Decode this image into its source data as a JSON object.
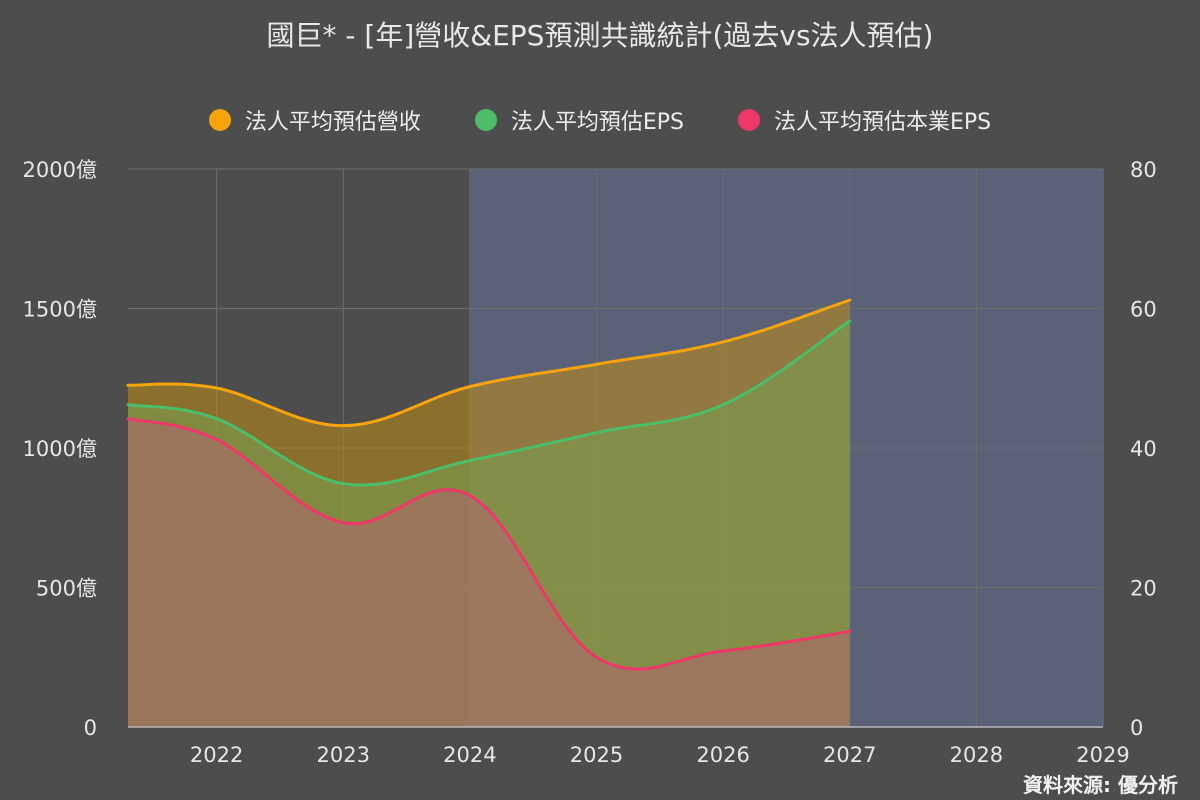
{
  "chart_data": {
    "type": "area",
    "title": "國巨* - [年]營收&EPS預測共識統計(過去vs法人預估)",
    "x_ticks": [
      "2022",
      "2023",
      "2024",
      "2025",
      "2026",
      "2027",
      "2028",
      "2029"
    ],
    "forecast_start": "2024",
    "y_left": {
      "ticks": [
        "0",
        "500億",
        "1000億",
        "1500億",
        "2000億"
      ],
      "range": [
        0,
        2000
      ],
      "unit": "億"
    },
    "y_right": {
      "ticks": [
        "0",
        "20",
        "40",
        "60",
        "80"
      ],
      "range": [
        0,
        80
      ]
    },
    "x_range": [
      2021.3,
      2029
    ],
    "series": [
      {
        "name": "法人平均預估營收",
        "axis": "left",
        "color": "#f5a40b",
        "fill": "rgba(190,140,20,0.55)",
        "points": [
          [
            2021.3,
            1225
          ],
          [
            2022,
            1215
          ],
          [
            2023,
            1080
          ],
          [
            2024,
            1220
          ],
          [
            2025,
            1300
          ],
          [
            2026,
            1380
          ],
          [
            2027,
            1530
          ]
        ]
      },
      {
        "name": "法人平均預估EPS",
        "axis": "right",
        "color": "#4cbe6a",
        "fill": "rgba(120,160,80,0.55)",
        "points": [
          [
            2021.3,
            46.2
          ],
          [
            2022,
            44.2
          ],
          [
            2023,
            34.9
          ],
          [
            2024,
            38.2
          ],
          [
            2025,
            42.2
          ],
          [
            2026,
            46.2
          ],
          [
            2027,
            58.2
          ]
        ]
      },
      {
        "name": "法人平均預估本業EPS",
        "axis": "right",
        "color": "#ee3868",
        "fill": "rgba(175,105,110,0.6)",
        "points": [
          [
            2021.3,
            44.2
          ],
          [
            2022,
            41.2
          ],
          [
            2023,
            29.3
          ],
          [
            2024,
            33.2
          ],
          [
            2025,
            10.0
          ],
          [
            2026,
            10.9
          ],
          [
            2027,
            13.7
          ]
        ]
      }
    ],
    "grid": true,
    "legend_position": "top-center",
    "source": "資料來源: 優分析"
  },
  "colors": {
    "background": "#4d4d4d",
    "forecast_band": "#5b6278",
    "grid": "#6e6e6e",
    "axis": "#b8b8b8"
  }
}
